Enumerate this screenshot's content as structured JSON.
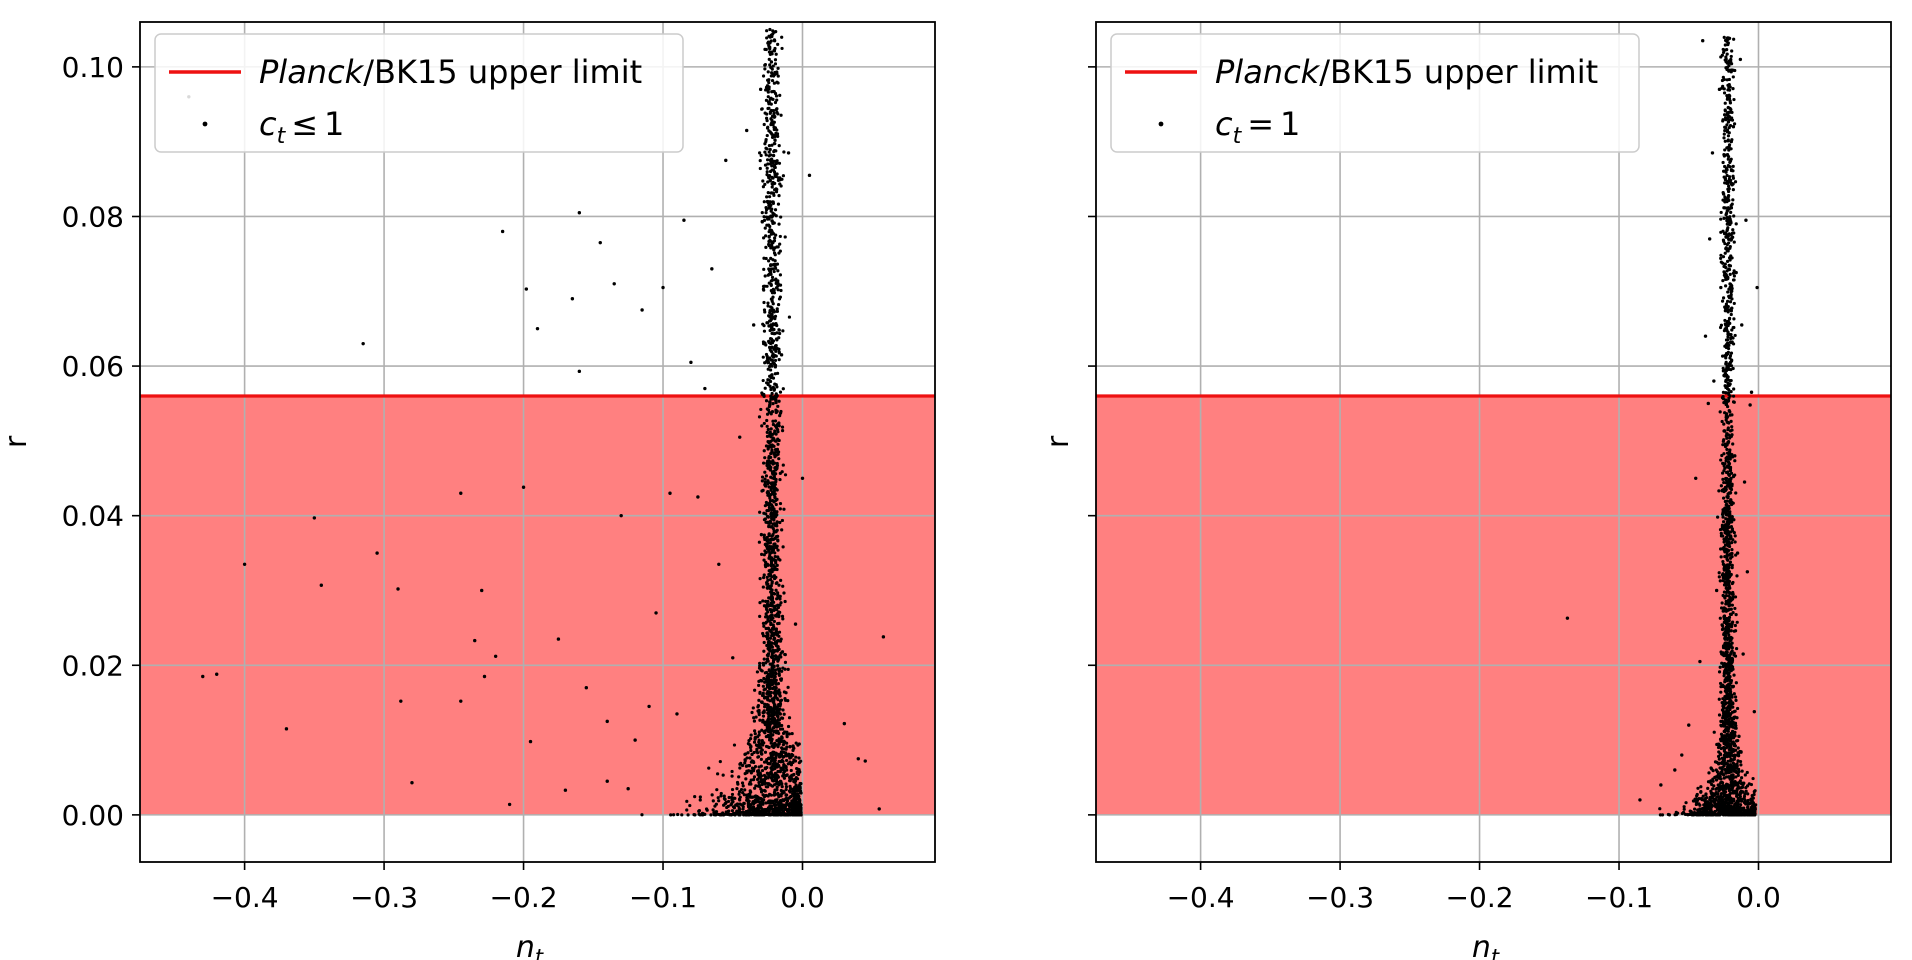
{
  "chart_data": [
    {
      "type": "scatter",
      "xlabel": "n",
      "xlabel_sub": "t",
      "ylabel": "r",
      "xlim": [
        -0.475,
        0.095
      ],
      "ylim": [
        -0.0063,
        0.106
      ],
      "xticks": [
        -0.4,
        -0.3,
        -0.2,
        -0.1,
        0.0
      ],
      "xtick_labels": [
        "−0.4",
        "−0.3",
        "−0.2",
        "−0.1",
        "0.0"
      ],
      "yticks": [
        0.0,
        0.02,
        0.04,
        0.06,
        0.08,
        0.1
      ],
      "ytick_labels": [
        "0.00",
        "0.02",
        "0.04",
        "0.06",
        "0.08",
        "0.10"
      ],
      "show_ytick_labels": true,
      "grid": true,
      "legend_position": "upper-left",
      "upper_limit": 0.056,
      "band_color": "#ff8080",
      "limit_line_color": "#ee1111",
      "point_color": "#000000",
      "legend": [
        {
          "kind": "line",
          "italic": "Planck",
          "text": "/BK15 upper limit"
        },
        {
          "kind": "point",
          "var": "c",
          "sub": "t",
          "rel": "≤",
          "value": "1"
        }
      ],
      "series": [
        {
          "marker": "point",
          "x": [
            -0.44,
            -0.43,
            -0.42,
            -0.4,
            -0.37,
            -0.35,
            -0.345,
            -0.315,
            -0.305,
            -0.29,
            -0.288,
            -0.28,
            -0.245,
            -0.245,
            -0.235,
            -0.23,
            -0.228,
            -0.22,
            -0.215,
            -0.21,
            -0.2,
            -0.198,
            -0.195,
            -0.19,
            -0.175,
            -0.17,
            -0.165,
            -0.16,
            -0.16,
            -0.155,
            -0.145,
            -0.14,
            -0.14,
            -0.135,
            -0.13,
            -0.125,
            -0.12,
            -0.115,
            -0.11,
            -0.105,
            -0.1,
            -0.095,
            -0.09,
            -0.085,
            -0.08,
            -0.075,
            -0.07,
            -0.065,
            -0.06,
            -0.055,
            -0.05,
            -0.045,
            -0.04,
            -0.035,
            -0.03,
            -0.025,
            -0.02,
            -0.015,
            -0.01,
            -0.005,
            0.0,
            0.005,
            0.03,
            0.04,
            0.045,
            0.055,
            0.058
          ],
          "y": [
            0.096,
            0.0185,
            0.0188,
            0.0335,
            0.0115,
            0.0397,
            0.0307,
            0.063,
            0.035,
            0.0302,
            0.0152,
            0.0043,
            0.043,
            0.0152,
            0.0233,
            0.03,
            0.0185,
            0.0212,
            0.078,
            0.0014,
            0.0438,
            0.0703,
            0.0098,
            0.065,
            0.0235,
            0.0033,
            0.069,
            0.0593,
            0.0805,
            0.017,
            0.0765,
            0.0045,
            0.0125,
            0.071,
            0.04,
            0.0035,
            0.01,
            0.0675,
            0.0145,
            0.027,
            0.0705,
            0.043,
            0.0135,
            0.0795,
            0.0605,
            0.0425,
            0.057,
            0.073,
            0.0335,
            0.0875,
            0.021,
            0.0505,
            0.0915,
            0.0655,
            0.097,
            0.082,
            0.1035,
            0.0615,
            0.0885,
            0.0255,
            0.045,
            0.0855,
            0.0122,
            0.0075,
            0.0072,
            0.0008,
            0.0238
          ]
        }
      ]
    },
    {
      "type": "scatter",
      "xlabel": "n",
      "xlabel_sub": "t",
      "ylabel": "r",
      "xlim": [
        -0.475,
        0.095
      ],
      "ylim": [
        -0.0063,
        0.106
      ],
      "xticks": [
        -0.4,
        -0.3,
        -0.2,
        -0.1,
        0.0
      ],
      "xtick_labels": [
        "−0.4",
        "−0.3",
        "−0.2",
        "−0.1",
        "0.0"
      ],
      "yticks": [
        0.0,
        0.02,
        0.04,
        0.06,
        0.08,
        0.1
      ],
      "ytick_labels": [
        "0.00",
        "0.02",
        "0.04",
        "0.06",
        "0.08",
        "0.10"
      ],
      "show_ytick_labels": false,
      "grid": true,
      "legend_position": "upper-left",
      "upper_limit": 0.056,
      "band_color": "#ff8080",
      "limit_line_color": "#ee1111",
      "point_color": "#000000",
      "legend": [
        {
          "kind": "line",
          "italic": "Planck",
          "text": "/BK15 upper limit"
        },
        {
          "kind": "point",
          "var": "c",
          "sub": "t",
          "rel": "=",
          "value": "1"
        }
      ],
      "series": [
        {
          "marker": "point",
          "x": [
            -0.137,
            -0.085,
            -0.07,
            -0.06,
            -0.055,
            -0.05,
            -0.045,
            -0.042,
            -0.04,
            -0.038,
            -0.036,
            -0.035,
            -0.033,
            -0.032,
            -0.03,
            -0.028,
            -0.027,
            -0.026,
            -0.025,
            -0.024,
            -0.022,
            -0.02,
            -0.019,
            -0.018,
            -0.017,
            -0.016,
            -0.015,
            -0.014,
            -0.013,
            -0.012,
            -0.011,
            -0.01,
            -0.009,
            -0.008,
            -0.006,
            -0.005,
            -0.003,
            -0.001
          ],
          "y": [
            0.0263,
            0.002,
            0.004,
            0.006,
            0.008,
            0.012,
            0.045,
            0.0205,
            0.1035,
            0.064,
            0.055,
            0.077,
            0.0885,
            0.058,
            0.03,
            0.097,
            0.0705,
            0.015,
            0.083,
            0.041,
            0.103,
            0.0605,
            0.0255,
            0.092,
            0.048,
            0.0725,
            0.035,
            0.0105,
            0.101,
            0.0655,
            0.0215,
            0.0445,
            0.0795,
            0.0325,
            0.0548,
            0.0565,
            0.0138,
            0.0705
          ]
        }
      ]
    }
  ]
}
